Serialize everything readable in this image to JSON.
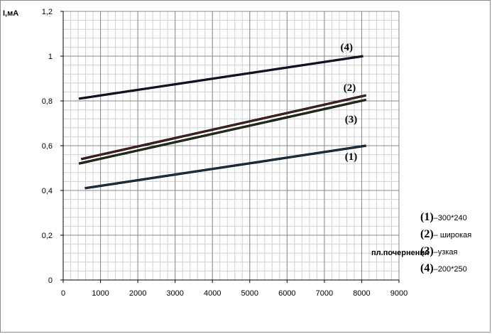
{
  "chart_data": {
    "type": "line",
    "ylabel": "I,мА",
    "xlabel": "пл.почернения",
    "xlim": [
      0,
      9000
    ],
    "ylim": [
      0,
      1.2
    ],
    "xticks": [
      "0",
      "1000",
      "2000",
      "3000",
      "4000",
      "5000",
      "6000",
      "7000",
      "8000",
      "9000"
    ],
    "yticks": [
      "0",
      "0,2",
      "0,4",
      "0,6",
      "0,8",
      "1",
      "1,2"
    ],
    "grid": true,
    "series": [
      {
        "tag": "(1)",
        "name": "300*240",
        "color": "#1f4e79",
        "x": [
          580,
          8120
        ],
        "y": [
          0.41,
          0.6
        ]
      },
      {
        "tag": "(2)",
        "name": "широкая",
        "color": "#7b2c2c",
        "x": [
          480,
          8120
        ],
        "y": [
          0.54,
          0.825
        ]
      },
      {
        "tag": "(3)",
        "name": "узкая",
        "color": "#2e4d1e",
        "x": [
          420,
          8120
        ],
        "y": [
          0.52,
          0.805
        ]
      },
      {
        "tag": "(4)",
        "name": "200*250",
        "color": "#1c1c4a",
        "x": [
          420,
          8040
        ],
        "y": [
          0.81,
          1.0
        ]
      }
    ]
  },
  "legend": [
    {
      "num": "(1)",
      "text": "–300*240"
    },
    {
      "num": "(2)",
      "text": "– широкая"
    },
    {
      "num": "(3)",
      "text": "–узкая"
    },
    {
      "num": "(4)",
      "text": "–200*250"
    }
  ]
}
